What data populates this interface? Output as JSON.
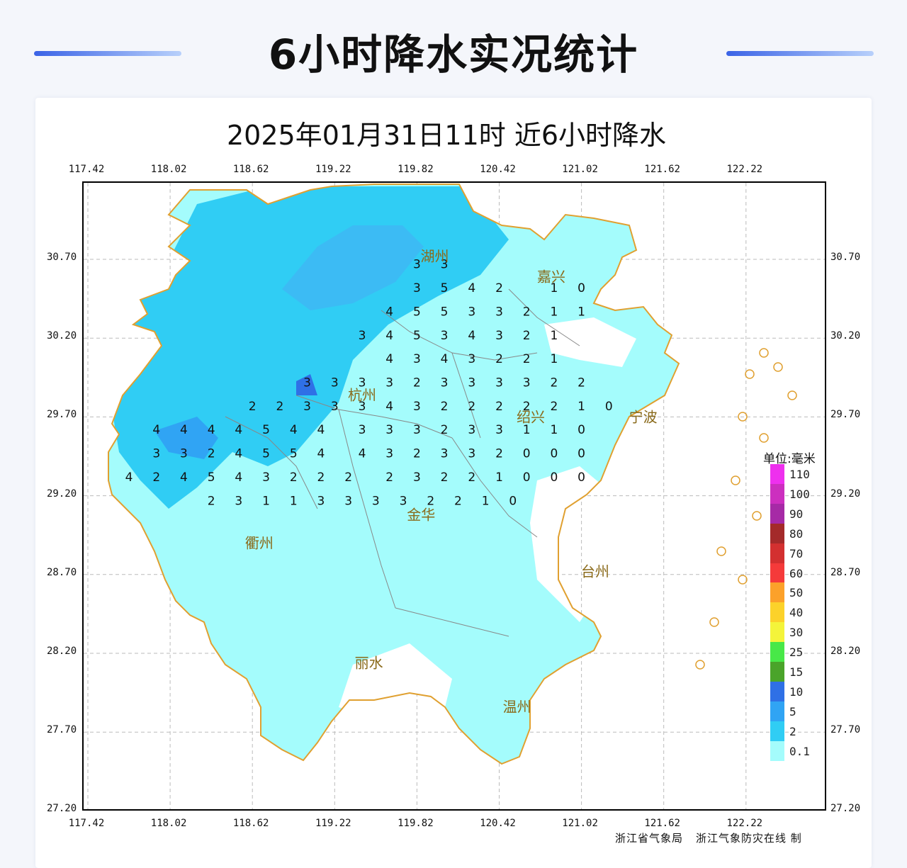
{
  "header": {
    "title": "6小时降水实况统计"
  },
  "map": {
    "title": "2025年01月31日11时  近6小时降水",
    "lon_ticks": [
      "117.42",
      "118.02",
      "118.62",
      "119.22",
      "119.82",
      "120.42",
      "121.02",
      "121.62",
      "122.22"
    ],
    "lat_ticks": [
      "30.70",
      "30.20",
      "29.70",
      "29.20",
      "28.70",
      "28.20",
      "27.70",
      "27.20"
    ],
    "cities": [
      {
        "name": "湖州",
        "lon": 119.95,
        "lat": 30.72
      },
      {
        "name": "嘉兴",
        "lon": 120.8,
        "lat": 30.59
      },
      {
        "name": "杭州",
        "lon": 119.42,
        "lat": 29.84
      },
      {
        "name": "绍兴",
        "lon": 120.65,
        "lat": 29.7
      },
      {
        "name": "宁波",
        "lon": 121.47,
        "lat": 29.7
      },
      {
        "name": "金华",
        "lon": 119.85,
        "lat": 29.08
      },
      {
        "name": "衢州",
        "lon": 118.67,
        "lat": 28.9
      },
      {
        "name": "台州",
        "lon": 121.12,
        "lat": 28.72
      },
      {
        "name": "丽水",
        "lon": 119.47,
        "lat": 28.14
      },
      {
        "name": "温州",
        "lon": 120.55,
        "lat": 27.86
      }
    ],
    "stations": [
      [
        119.82,
        30.67,
        "3"
      ],
      [
        120.02,
        30.67,
        "3"
      ],
      [
        119.82,
        30.52,
        "3"
      ],
      [
        120.02,
        30.52,
        "5"
      ],
      [
        120.22,
        30.52,
        "4"
      ],
      [
        120.42,
        30.52,
        "2"
      ],
      [
        120.82,
        30.52,
        "1"
      ],
      [
        121.02,
        30.52,
        "0"
      ],
      [
        119.62,
        30.37,
        "4"
      ],
      [
        119.82,
        30.37,
        "5"
      ],
      [
        120.02,
        30.37,
        "5"
      ],
      [
        120.22,
        30.37,
        "3"
      ],
      [
        120.42,
        30.37,
        "3"
      ],
      [
        120.62,
        30.37,
        "2"
      ],
      [
        120.82,
        30.37,
        "1"
      ],
      [
        121.02,
        30.37,
        "1"
      ],
      [
        119.42,
        30.22,
        "3"
      ],
      [
        119.62,
        30.22,
        "4"
      ],
      [
        119.82,
        30.22,
        "5"
      ],
      [
        120.02,
        30.22,
        "3"
      ],
      [
        120.22,
        30.22,
        "4"
      ],
      [
        120.42,
        30.22,
        "3"
      ],
      [
        120.62,
        30.22,
        "2"
      ],
      [
        120.82,
        30.22,
        "1"
      ],
      [
        119.62,
        30.07,
        "4"
      ],
      [
        119.82,
        30.07,
        "3"
      ],
      [
        120.02,
        30.07,
        "4"
      ],
      [
        120.22,
        30.07,
        "3"
      ],
      [
        120.42,
        30.07,
        "2"
      ],
      [
        120.62,
        30.07,
        "2"
      ],
      [
        120.82,
        30.07,
        "1"
      ],
      [
        119.02,
        29.92,
        "3"
      ],
      [
        119.22,
        29.92,
        "3"
      ],
      [
        119.42,
        29.92,
        "3"
      ],
      [
        119.62,
        29.92,
        "3"
      ],
      [
        119.82,
        29.92,
        "2"
      ],
      [
        120.02,
        29.92,
        "3"
      ],
      [
        120.22,
        29.92,
        "3"
      ],
      [
        120.42,
        29.92,
        "3"
      ],
      [
        120.62,
        29.92,
        "3"
      ],
      [
        120.82,
        29.92,
        "2"
      ],
      [
        121.02,
        29.92,
        "2"
      ],
      [
        118.62,
        29.77,
        "2"
      ],
      [
        118.82,
        29.77,
        "2"
      ],
      [
        119.02,
        29.77,
        "3"
      ],
      [
        119.22,
        29.77,
        "3"
      ],
      [
        119.42,
        29.77,
        "3"
      ],
      [
        119.62,
        29.77,
        "4"
      ],
      [
        119.82,
        29.77,
        "3"
      ],
      [
        120.02,
        29.77,
        "2"
      ],
      [
        120.22,
        29.77,
        "2"
      ],
      [
        120.42,
        29.77,
        "2"
      ],
      [
        120.62,
        29.77,
        "2"
      ],
      [
        120.82,
        29.77,
        "2"
      ],
      [
        121.02,
        29.77,
        "1"
      ],
      [
        121.22,
        29.77,
        "0"
      ],
      [
        117.92,
        29.62,
        "4"
      ],
      [
        118.12,
        29.62,
        "4"
      ],
      [
        118.32,
        29.62,
        "4"
      ],
      [
        118.52,
        29.62,
        "4"
      ],
      [
        118.72,
        29.62,
        "5"
      ],
      [
        118.92,
        29.62,
        "4"
      ],
      [
        119.12,
        29.62,
        "4"
      ],
      [
        119.42,
        29.62,
        "3"
      ],
      [
        119.62,
        29.62,
        "3"
      ],
      [
        119.82,
        29.62,
        "3"
      ],
      [
        120.02,
        29.62,
        "2"
      ],
      [
        120.22,
        29.62,
        "3"
      ],
      [
        120.42,
        29.62,
        "3"
      ],
      [
        120.62,
        29.62,
        "1"
      ],
      [
        120.82,
        29.62,
        "1"
      ],
      [
        121.02,
        29.62,
        "0"
      ],
      [
        117.92,
        29.47,
        "3"
      ],
      [
        118.12,
        29.47,
        "3"
      ],
      [
        118.32,
        29.47,
        "2"
      ],
      [
        118.52,
        29.47,
        "4"
      ],
      [
        118.72,
        29.47,
        "5"
      ],
      [
        118.92,
        29.47,
        "5"
      ],
      [
        119.12,
        29.47,
        "4"
      ],
      [
        119.42,
        29.47,
        "4"
      ],
      [
        119.62,
        29.47,
        "3"
      ],
      [
        119.82,
        29.47,
        "2"
      ],
      [
        120.02,
        29.47,
        "3"
      ],
      [
        120.22,
        29.47,
        "3"
      ],
      [
        120.42,
        29.47,
        "2"
      ],
      [
        120.62,
        29.47,
        "0"
      ],
      [
        120.82,
        29.47,
        "0"
      ],
      [
        121.02,
        29.47,
        "0"
      ],
      [
        117.72,
        29.32,
        "4"
      ],
      [
        117.92,
        29.32,
        "2"
      ],
      [
        118.12,
        29.32,
        "4"
      ],
      [
        118.32,
        29.32,
        "5"
      ],
      [
        118.52,
        29.32,
        "4"
      ],
      [
        118.72,
        29.32,
        "3"
      ],
      [
        118.92,
        29.32,
        "2"
      ],
      [
        119.12,
        29.32,
        "2"
      ],
      [
        119.32,
        29.32,
        "2"
      ],
      [
        119.62,
        29.32,
        "2"
      ],
      [
        119.82,
        29.32,
        "3"
      ],
      [
        120.02,
        29.32,
        "2"
      ],
      [
        120.22,
        29.32,
        "2"
      ],
      [
        120.42,
        29.32,
        "1"
      ],
      [
        120.62,
        29.32,
        "0"
      ],
      [
        120.82,
        29.32,
        "0"
      ],
      [
        121.02,
        29.32,
        "0"
      ],
      [
        118.32,
        29.17,
        "2"
      ],
      [
        118.52,
        29.17,
        "3"
      ],
      [
        118.72,
        29.17,
        "1"
      ],
      [
        118.92,
        29.17,
        "1"
      ],
      [
        119.12,
        29.17,
        "3"
      ],
      [
        119.32,
        29.17,
        "3"
      ],
      [
        119.52,
        29.17,
        "3"
      ],
      [
        119.72,
        29.17,
        "3"
      ],
      [
        119.92,
        29.17,
        "2"
      ],
      [
        120.12,
        29.17,
        "2"
      ],
      [
        120.32,
        29.17,
        "1"
      ],
      [
        120.52,
        29.17,
        "0"
      ]
    ]
  },
  "legend": {
    "unit": "单位:毫米",
    "items": [
      {
        "label": "110",
        "color": "#ee30ee"
      },
      {
        "label": "100",
        "color": "#cc2fbf"
      },
      {
        "label": "90",
        "color": "#a62aa6"
      },
      {
        "label": "80",
        "color": "#a42a2a"
      },
      {
        "label": "70",
        "color": "#d33030"
      },
      {
        "label": "60",
        "color": "#f53a3a"
      },
      {
        "label": "50",
        "color": "#fca12a"
      },
      {
        "label": "40",
        "color": "#fcd22a"
      },
      {
        "label": "30",
        "color": "#f4f43a"
      },
      {
        "label": "25",
        "color": "#48e848"
      },
      {
        "label": "15",
        "color": "#4aa42a"
      },
      {
        "label": "10",
        "color": "#2f70e6"
      },
      {
        "label": "5",
        "color": "#30a4f4"
      },
      {
        "label": "2",
        "color": "#30cdf4"
      },
      {
        "label": "0.1",
        "color": "#a4fcfc"
      }
    ]
  },
  "credit": {
    "org1": "浙江省气象局",
    "org2": "浙江气象防灾在线 制"
  }
}
